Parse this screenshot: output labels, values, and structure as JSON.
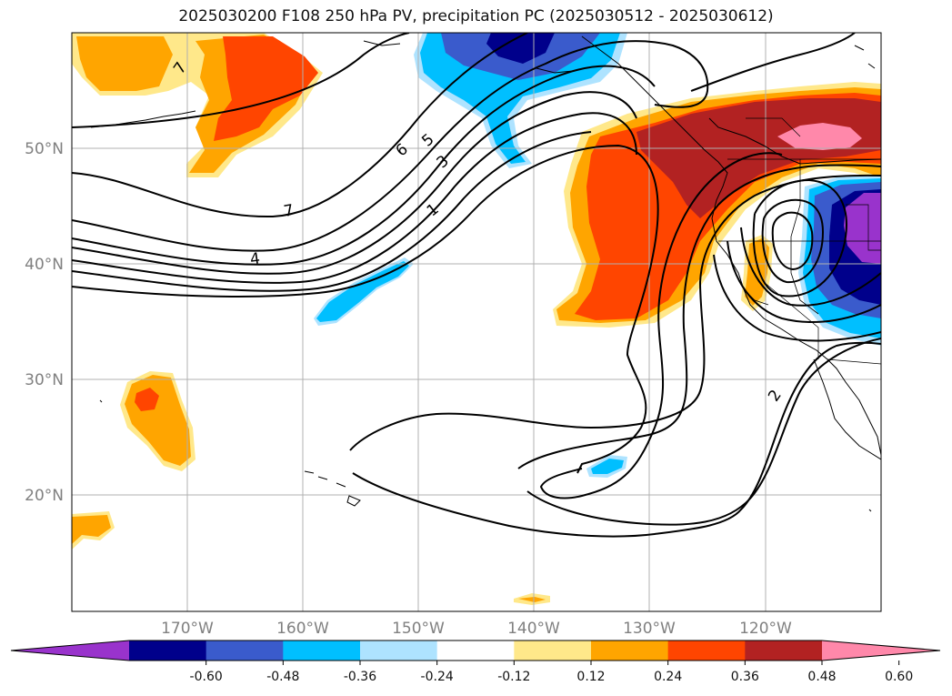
{
  "title": "2025030200 F108 250 hPa PV, precipitation PC (2025030512 - 2025030612)",
  "latitude_labels": [
    "50°N",
    "40°N",
    "30°N",
    "20°N"
  ],
  "longitude_labels": [
    "170°W",
    "160°W",
    "150°W",
    "140°W",
    "130°W",
    "120°W"
  ],
  "colorbar": {
    "levels": [
      "-0.60",
      "-0.48",
      "-0.36",
      "-0.24",
      "-0.12",
      "0.12",
      "0.24",
      "0.36",
      "0.48",
      "0.60"
    ],
    "colors": [
      "#9933cc",
      "#00008b",
      "#3a5bcc",
      "#00bfff",
      "#aee3ff",
      "#ffffff",
      "#ffe88a",
      "#ffa500",
      "#ff4500",
      "#b22222",
      "#ff88aa"
    ]
  },
  "contour_labels": [
    "7",
    "6",
    "5",
    "4",
    "3",
    "1",
    "7",
    "2"
  ]
}
